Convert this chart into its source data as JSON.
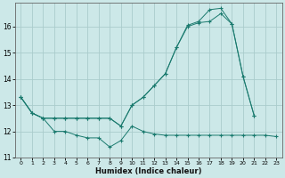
{
  "xlabel": "Humidex (Indice chaleur)",
  "background_color": "#cce8e8",
  "line_color": "#1a7a6e",
  "grid_color": "#aacccc",
  "xlim": [
    -0.5,
    23.5
  ],
  "ylim": [
    11,
    16.9
  ],
  "yticks": [
    11,
    12,
    13,
    14,
    15,
    16
  ],
  "xticks": [
    0,
    1,
    2,
    3,
    4,
    5,
    6,
    7,
    8,
    9,
    10,
    11,
    12,
    13,
    14,
    15,
    16,
    17,
    18,
    19,
    20,
    21,
    22,
    23
  ],
  "line1_x": [
    0,
    1,
    2,
    3,
    4,
    5,
    6,
    7,
    8,
    9,
    10,
    11,
    12,
    13,
    14,
    15,
    16,
    17,
    18,
    19,
    20,
    21,
    22,
    23
  ],
  "line1_y": [
    13.3,
    12.7,
    12.5,
    12.0,
    12.0,
    11.85,
    11.75,
    11.75,
    11.4,
    11.65,
    12.2,
    12.0,
    11.9,
    11.85,
    11.85,
    11.85,
    11.85,
    11.85,
    11.85,
    11.85,
    11.85,
    11.85,
    11.85,
    11.8
  ],
  "line2_x": [
    0,
    1,
    2,
    3,
    4,
    5,
    6,
    7,
    8,
    9,
    10,
    11,
    12,
    13,
    14,
    15,
    16,
    17,
    18,
    19,
    20,
    21
  ],
  "line2_y": [
    13.3,
    12.7,
    12.5,
    12.5,
    12.5,
    12.5,
    12.5,
    12.5,
    12.5,
    12.2,
    13.0,
    13.3,
    13.75,
    14.2,
    15.2,
    16.0,
    16.15,
    16.2,
    16.5,
    16.1,
    14.1,
    12.6
  ],
  "line3_x": [
    0,
    1,
    2,
    3,
    4,
    5,
    6,
    7,
    8,
    9,
    10,
    11,
    12,
    13,
    14,
    15,
    16,
    17,
    18,
    19,
    20,
    21
  ],
  "line3_y": [
    13.3,
    12.7,
    12.5,
    12.5,
    12.5,
    12.5,
    12.5,
    12.5,
    12.5,
    12.2,
    13.0,
    13.3,
    13.75,
    14.2,
    15.2,
    16.05,
    16.2,
    16.65,
    16.7,
    16.1,
    14.1,
    12.6
  ]
}
